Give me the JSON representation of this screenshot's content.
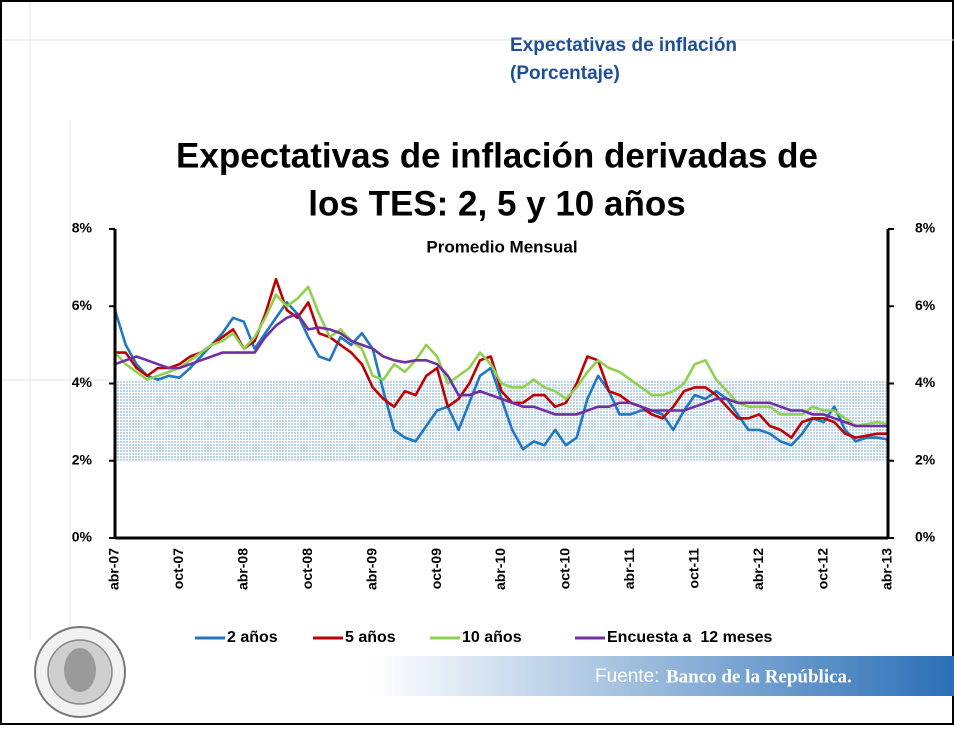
{
  "header": {
    "title": "Expectativas de inflación",
    "subtitle": "(Porcentaje)"
  },
  "chart_data": {
    "type": "line",
    "title": [
      "Expectativas de inflación derivadas de",
      "los TES: 2, 5 y 10 años"
    ],
    "subtitle": "Promedio Mensual",
    "categories": [
      "abr-07",
      null,
      null,
      null,
      null,
      null,
      "oct-07",
      null,
      null,
      null,
      null,
      null,
      "abr-08",
      null,
      null,
      null,
      null,
      null,
      "oct-08",
      null,
      null,
      null,
      null,
      null,
      "abr-09",
      null,
      null,
      null,
      null,
      null,
      "oct-09",
      null,
      null,
      null,
      null,
      null,
      "abr-10",
      null,
      null,
      null,
      null,
      null,
      "oct-10",
      null,
      null,
      null,
      null,
      null,
      "abr-11",
      null,
      null,
      null,
      null,
      null,
      "oct-11",
      null,
      null,
      null,
      null,
      null,
      "abr-12",
      null,
      null,
      null,
      null,
      null,
      "oct-12",
      null,
      null,
      null,
      null,
      null,
      "abr-13"
    ],
    "ylim": [
      0,
      8
    ],
    "yticks": [
      {
        "value": 0,
        "label": "0%"
      },
      {
        "value": 2,
        "label": "2%"
      },
      {
        "value": 4,
        "label": "4%"
      },
      {
        "value": 6,
        "label": "6%"
      },
      {
        "value": 8,
        "label": "8%"
      }
    ],
    "y2lim": [
      0,
      8
    ],
    "y2ticks": [
      {
        "value": 0,
        "label": "0%"
      },
      {
        "value": 2,
        "label": "2%"
      },
      {
        "value": 4,
        "label": "4%"
      },
      {
        "value": 6,
        "label": "6%"
      },
      {
        "value": 8,
        "label": "8%"
      }
    ],
    "band": [
      2,
      4.1
    ],
    "band_color": "#b9d3ea",
    "series": [
      {
        "name": "2 años",
        "color": "#1f78c1",
        "values": [
          5.9,
          5.0,
          4.5,
          4.2,
          4.1,
          4.2,
          4.15,
          4.4,
          4.7,
          5.0,
          5.3,
          5.7,
          5.6,
          4.9,
          5.3,
          5.7,
          6.1,
          5.8,
          5.2,
          4.7,
          4.6,
          5.2,
          5.0,
          5.3,
          4.9,
          3.8,
          2.8,
          2.6,
          2.5,
          2.9,
          3.3,
          3.4,
          2.8,
          3.5,
          4.2,
          4.4,
          3.6,
          2.8,
          2.3,
          2.5,
          2.4,
          2.8,
          2.4,
          2.6,
          3.6,
          4.2,
          3.8,
          3.2,
          3.2,
          3.3,
          3.3,
          3.2,
          2.8,
          3.3,
          3.7,
          3.6,
          3.8,
          3.6,
          3.2,
          2.8,
          2.8,
          2.7,
          2.5,
          2.4,
          2.7,
          3.1,
          3.0,
          3.4,
          2.8,
          2.5,
          2.6,
          2.6,
          2.55
        ]
      },
      {
        "name": "5 años",
        "color": "#c00000",
        "values": [
          4.8,
          4.8,
          4.4,
          4.2,
          4.4,
          4.4,
          4.5,
          4.7,
          4.8,
          5.0,
          5.2,
          5.4,
          4.9,
          5.1,
          5.8,
          6.7,
          5.9,
          5.7,
          6.1,
          5.3,
          5.2,
          5.0,
          4.8,
          4.5,
          3.9,
          3.6,
          3.4,
          3.8,
          3.7,
          4.2,
          4.4,
          3.4,
          3.6,
          4.0,
          4.6,
          4.7,
          3.8,
          3.5,
          3.5,
          3.7,
          3.7,
          3.4,
          3.5,
          4.0,
          4.7,
          4.6,
          3.8,
          3.7,
          3.5,
          3.4,
          3.2,
          3.1,
          3.4,
          3.8,
          3.9,
          3.9,
          3.7,
          3.4,
          3.1,
          3.1,
          3.2,
          2.9,
          2.8,
          2.6,
          3.0,
          3.1,
          3.1,
          3.0,
          2.7,
          2.6,
          2.65,
          2.7,
          2.7
        ]
      },
      {
        "name": "10 años",
        "color": "#8fd14f",
        "values": [
          4.8,
          4.5,
          4.3,
          4.1,
          4.2,
          4.3,
          4.4,
          4.6,
          4.8,
          5.0,
          5.1,
          5.3,
          4.9,
          5.2,
          5.7,
          6.3,
          6.0,
          6.2,
          6.5,
          5.8,
          5.2,
          5.4,
          5.1,
          4.9,
          4.2,
          4.1,
          4.5,
          4.3,
          4.6,
          5.0,
          4.7,
          4.0,
          4.2,
          4.4,
          4.8,
          4.5,
          4.0,
          3.9,
          3.9,
          4.1,
          3.9,
          3.8,
          3.6,
          3.9,
          4.3,
          4.6,
          4.4,
          4.3,
          4.1,
          3.9,
          3.7,
          3.7,
          3.8,
          4.0,
          4.5,
          4.6,
          4.1,
          3.8,
          3.5,
          3.4,
          3.4,
          3.4,
          3.2,
          3.2,
          3.2,
          3.4,
          3.3,
          3.3,
          3.1,
          2.9,
          2.95,
          3.0,
          2.95
        ]
      },
      {
        "name": "Encuesta a  12 meses",
        "color": "#7030a0",
        "values": [
          4.5,
          4.6,
          4.7,
          4.6,
          4.5,
          4.4,
          4.4,
          4.5,
          4.6,
          4.7,
          4.8,
          4.8,
          4.8,
          4.8,
          5.2,
          5.5,
          5.7,
          5.8,
          5.4,
          5.45,
          5.4,
          5.3,
          5.1,
          5.0,
          4.9,
          4.7,
          4.6,
          4.55,
          4.6,
          4.6,
          4.5,
          4.2,
          3.7,
          3.7,
          3.8,
          3.7,
          3.6,
          3.5,
          3.4,
          3.4,
          3.3,
          3.2,
          3.2,
          3.2,
          3.3,
          3.4,
          3.4,
          3.5,
          3.5,
          3.4,
          3.3,
          3.3,
          3.3,
          3.3,
          3.4,
          3.5,
          3.6,
          3.6,
          3.5,
          3.5,
          3.5,
          3.5,
          3.4,
          3.3,
          3.3,
          3.2,
          3.2,
          3.1,
          3.0,
          2.9,
          2.9,
          2.9,
          2.9
        ]
      }
    ]
  },
  "footer": {
    "source_label": "Fuente:",
    "source": "Banco de la República."
  }
}
